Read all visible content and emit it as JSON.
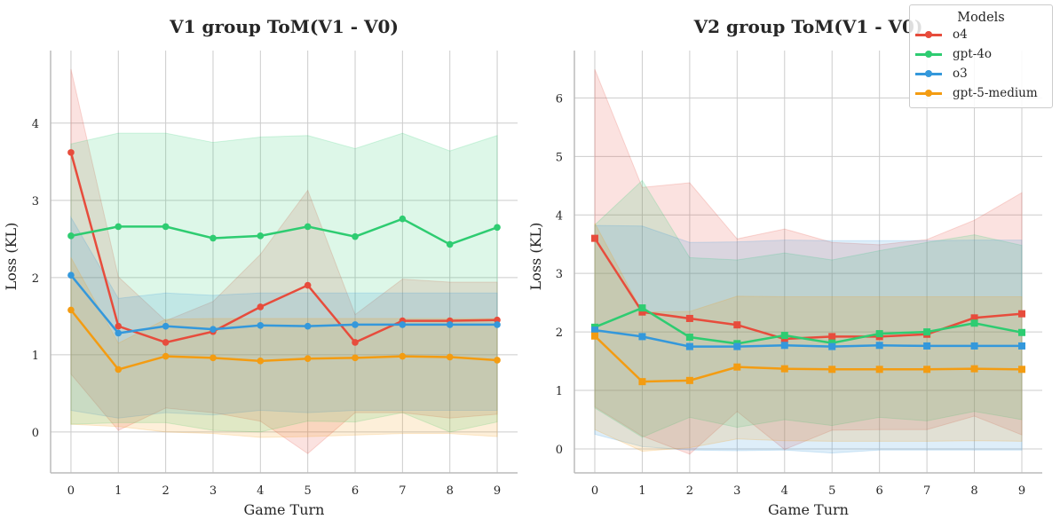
{
  "legend": {
    "title": "Models",
    "entries": [
      {
        "name": "o4",
        "color": "#e74c3c"
      },
      {
        "name": "gpt-4o",
        "color": "#2ecc71"
      },
      {
        "name": "o3",
        "color": "#3498db"
      },
      {
        "name": "gpt-5-medium",
        "color": "#f39c12"
      }
    ],
    "placement": "top-right"
  },
  "chart_data": [
    {
      "type": "line",
      "title": "V1 group ToM(V1 - V0)",
      "xlabel": "Game Turn",
      "ylabel": "Loss (KL)",
      "x": [
        0,
        1,
        2,
        3,
        4,
        5,
        6,
        7,
        8,
        9
      ],
      "xticks": [
        "0",
        "1",
        "2",
        "3",
        "4",
        "5",
        "6",
        "7",
        "8",
        "9"
      ],
      "yticks": [
        "0",
        "1",
        "2",
        "3",
        "4"
      ],
      "ylim": [
        -0.53,
        4.94
      ],
      "xlim": [
        -0.43,
        9.43
      ],
      "grid": true,
      "marker": "circle",
      "series": [
        {
          "name": "o4",
          "color": "#e74c3c",
          "values": [
            3.62,
            1.37,
            1.16,
            1.3,
            1.62,
            1.9,
            1.16,
            1.44,
            1.44,
            1.45
          ],
          "upper": [
            4.7,
            2.01,
            1.44,
            1.69,
            2.3,
            3.13,
            1.52,
            1.98,
            1.94,
            1.94
          ],
          "lower": [
            0.75,
            0.02,
            0.31,
            0.25,
            0.14,
            -0.28,
            0.25,
            0.25,
            0.18,
            0.23
          ]
        },
        {
          "name": "gpt-4o",
          "color": "#2ecc71",
          "values": [
            2.54,
            2.66,
            2.66,
            2.51,
            2.54,
            2.66,
            2.53,
            2.76,
            2.43,
            2.65
          ],
          "upper": [
            3.73,
            3.87,
            3.87,
            3.75,
            3.82,
            3.84,
            3.67,
            3.87,
            3.64,
            3.84
          ],
          "lower": [
            0.1,
            0.12,
            0.12,
            0.02,
            0.0,
            0.14,
            0.13,
            0.25,
            0.0,
            0.13
          ]
        },
        {
          "name": "o3",
          "color": "#3498db",
          "values": [
            2.03,
            1.28,
            1.37,
            1.33,
            1.38,
            1.37,
            1.39,
            1.39,
            1.39,
            1.39
          ],
          "upper": [
            2.78,
            1.73,
            1.8,
            1.77,
            1.8,
            1.8,
            1.8,
            1.8,
            1.8,
            1.8
          ],
          "lower": [
            0.28,
            0.18,
            0.25,
            0.22,
            0.28,
            0.25,
            0.28,
            0.28,
            0.28,
            0.28
          ]
        },
        {
          "name": "gpt-5-medium",
          "color": "#f39c12",
          "values": [
            1.58,
            0.81,
            0.98,
            0.96,
            0.92,
            0.95,
            0.96,
            0.98,
            0.97,
            0.93
          ],
          "upper": [
            2.26,
            1.15,
            1.46,
            1.47,
            1.47,
            1.47,
            1.47,
            1.47,
            1.47,
            1.47
          ],
          "lower": [
            0.1,
            0.07,
            0.0,
            -0.02,
            -0.07,
            -0.06,
            -0.04,
            -0.02,
            -0.02,
            -0.06
          ]
        }
      ]
    },
    {
      "type": "line",
      "title": "V2 group ToM(V1 - V0)",
      "xlabel": "Game Turn",
      "ylabel": "Loss (KL)",
      "x": [
        0,
        1,
        2,
        3,
        4,
        5,
        6,
        7,
        8,
        9
      ],
      "xticks": [
        "0",
        "1",
        "2",
        "3",
        "4",
        "5",
        "6",
        "7",
        "8",
        "9"
      ],
      "yticks": [
        "0",
        "1",
        "2",
        "3",
        "4",
        "5",
        "6"
      ],
      "ylim": [
        -0.41,
        6.81
      ],
      "xlim": [
        -0.43,
        9.43
      ],
      "grid": true,
      "marker": "square",
      "series": [
        {
          "name": "o4",
          "color": "#e74c3c",
          "values": [
            3.6,
            2.34,
            2.23,
            2.12,
            1.88,
            1.92,
            1.92,
            1.96,
            2.24,
            2.31
          ],
          "upper": [
            6.49,
            4.47,
            4.55,
            3.59,
            3.76,
            3.53,
            3.49,
            3.58,
            3.91,
            4.38
          ],
          "lower": [
            0.72,
            0.22,
            -0.09,
            0.64,
            -0.01,
            0.32,
            0.33,
            0.33,
            0.56,
            0.24
          ]
        },
        {
          "name": "gpt-4o",
          "color": "#2ecc71",
          "values": [
            2.08,
            2.41,
            1.91,
            1.8,
            1.94,
            1.81,
            1.97,
            2.0,
            2.15,
            1.99
          ],
          "upper": [
            3.83,
            4.59,
            3.27,
            3.23,
            3.35,
            3.23,
            3.39,
            3.53,
            3.66,
            3.48
          ],
          "lower": [
            0.7,
            0.2,
            0.54,
            0.37,
            0.5,
            0.4,
            0.54,
            0.48,
            0.64,
            0.5
          ]
        },
        {
          "name": "o3",
          "color": "#3498db",
          "values": [
            2.03,
            1.92,
            1.75,
            1.75,
            1.77,
            1.75,
            1.77,
            1.76,
            1.76,
            1.76
          ],
          "upper": [
            3.82,
            3.81,
            3.53,
            3.54,
            3.57,
            3.56,
            3.56,
            3.56,
            3.57,
            3.57
          ],
          "lower": [
            0.25,
            0.04,
            -0.02,
            -0.03,
            -0.02,
            -0.07,
            -0.02,
            -0.02,
            -0.02,
            -0.02
          ]
        },
        {
          "name": "gpt-5-medium",
          "color": "#f39c12",
          "values": [
            1.93,
            1.15,
            1.17,
            1.4,
            1.37,
            1.36,
            1.36,
            1.36,
            1.37,
            1.36
          ],
          "upper": [
            3.86,
            2.34,
            2.35,
            2.61,
            2.6,
            2.6,
            2.6,
            2.6,
            2.6,
            2.6
          ],
          "lower": [
            0.33,
            -0.04,
            0.02,
            0.17,
            0.14,
            0.13,
            0.13,
            0.13,
            0.14,
            0.13
          ]
        }
      ]
    }
  ]
}
